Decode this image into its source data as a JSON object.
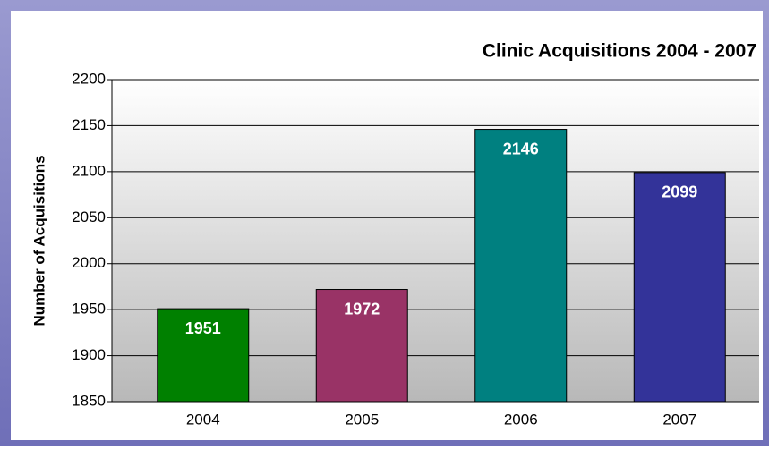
{
  "chart_data": {
    "type": "bar",
    "title": "Clinic Acquisitions 2004 - 2007",
    "y_label": "Number of Acquisitions",
    "categories": [
      "2004",
      "2005",
      "2006",
      "2007"
    ],
    "values": [
      1951,
      1972,
      2146,
      2099
    ],
    "colors": [
      "#008000",
      "#993366",
      "#008080",
      "#333399"
    ],
    "ylim": [
      1850,
      2200
    ],
    "yticks": [
      1850,
      1900,
      1950,
      2000,
      2050,
      2100,
      2150,
      2200
    ],
    "grid": true
  }
}
